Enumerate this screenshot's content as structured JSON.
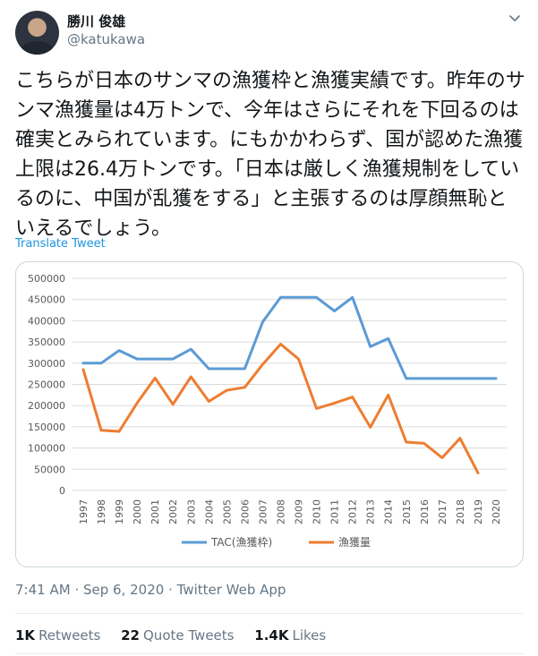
{
  "user": {
    "display_name": "勝川 俊雄",
    "handle": "@katukawa"
  },
  "tweet": {
    "text": "こちらが日本のサンマの漁獲枠と漁獲実績です。昨年のサンマ漁獲量は4万トンで、今年はさらにそれを下回るのは確実とみられています。にもかかわらず、国が認めた漁獲上限は26.4万トンです。「日本は厳しく漁獲規制をしているのに、中国が乱獲をする」と主張するのは厚顔無恥といえるでしょう。",
    "translate_label": "Translate Tweet",
    "time": "7:41 AM",
    "date": "Sep 6, 2020",
    "source": "Twitter Web App",
    "separator": "·"
  },
  "stats": {
    "retweets_count": "1K",
    "retweets_label": "Retweets",
    "quotes_count": "22",
    "quotes_label": "Quote Tweets",
    "likes_count": "1.4K",
    "likes_label": "Likes"
  },
  "icons": {
    "caret": "chevron-down-icon"
  },
  "colors": {
    "tac": "#5b9bd5",
    "catch": "#ed7d31",
    "link": "#1b95e0",
    "muted": "#657786"
  },
  "chart_data": {
    "type": "line",
    "x": [
      "1997",
      "1998",
      "1999",
      "2000",
      "2001",
      "2002",
      "2003",
      "2004",
      "2005",
      "2006",
      "2007",
      "2008",
      "2009",
      "2010",
      "2011",
      "2012",
      "2013",
      "2014",
      "2015",
      "2016",
      "2017",
      "2018",
      "2019",
      "2020"
    ],
    "series": [
      {
        "name": "TAC(漁獲枠)",
        "color": "#5b9bd5",
        "values": [
          300000,
          300000,
          330000,
          310000,
          310000,
          310000,
          333000,
          287000,
          287000,
          287000,
          397000,
          455000,
          455000,
          455000,
          423000,
          455000,
          339000,
          358000,
          264000,
          264000,
          264000,
          264000,
          264000,
          264000
        ]
      },
      {
        "name": "漁獲量",
        "color": "#ed7d31",
        "values": [
          285000,
          142000,
          139000,
          206000,
          265000,
          203000,
          268000,
          210000,
          236000,
          243000,
          297000,
          345000,
          310000,
          193000,
          206000,
          220000,
          149000,
          225000,
          114000,
          111000,
          77000,
          123000,
          41000,
          null
        ]
      }
    ],
    "yticks": [
      "0",
      "50000",
      "100000",
      "150000",
      "200000",
      "250000",
      "300000",
      "350000",
      "400000",
      "450000",
      "500000"
    ],
    "ylim": [
      0,
      500000
    ],
    "grid": true,
    "legend": "bottom"
  }
}
